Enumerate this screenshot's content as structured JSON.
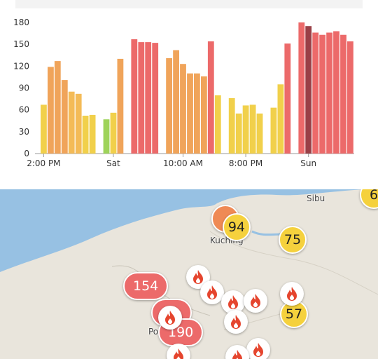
{
  "chart_data": {
    "type": "bar",
    "ylim": [
      0,
      180
    ],
    "yticks": [
      0,
      30,
      60,
      90,
      120,
      150,
      180
    ],
    "xtick_labels": [
      "2:00 PM",
      "Sat",
      "10:00 AM",
      "8:00 PM",
      "Sun"
    ],
    "xtick_bar_index": [
      0,
      10,
      20,
      29,
      38
    ],
    "values": [
      67,
      119,
      127,
      101,
      85,
      82,
      52,
      53,
      null,
      47,
      56,
      130,
      null,
      157,
      153,
      153,
      152,
      null,
      131,
      142,
      123,
      110,
      110,
      106,
      154,
      80,
      null,
      76,
      55,
      66,
      67,
      55,
      null,
      63,
      95,
      151,
      null,
      180,
      175,
      166,
      163,
      166,
      168,
      163,
      154
    ],
    "colors": [
      "#f1d04b",
      "#f0a45a",
      "#f0a45a",
      "#f0a45a",
      "#f4bb57",
      "#f4bb57",
      "#f1d04b",
      "#f1d04b",
      null,
      "#9ed35a",
      "#f1d04b",
      "#f0a45a",
      null,
      "#ec6a6a",
      "#ec6a6a",
      "#ec6a6a",
      "#ec6a6a",
      null,
      "#f0a45a",
      "#f0a45a",
      "#f0a45a",
      "#f0a45a",
      "#f0a45a",
      "#f0a45a",
      "#ec6a6a",
      "#f1d04b",
      null,
      "#f1d04b",
      "#f1d04b",
      "#f1d04b",
      "#f1d04b",
      "#f1d04b",
      null,
      "#f1d04b",
      "#f1d04b",
      "#ec6a6a",
      null,
      "#ec6a6a",
      "#9a4047",
      "#ec6a6a",
      "#ec6a6a",
      "#ec6a6a",
      "#ec6a6a",
      "#ec6a6a",
      "#ec6a6a"
    ]
  },
  "map": {
    "places": [
      "Sibu",
      "Kuching",
      "Pon"
    ],
    "markers": [
      {
        "value": "94",
        "style": "yellow"
      },
      {
        "value": "75",
        "style": "yellow"
      },
      {
        "value": "154",
        "style": "red"
      },
      {
        "value": "190",
        "style": "red"
      },
      {
        "value": "57",
        "style": "yellow"
      },
      {
        "value": "6",
        "style": "yellow"
      }
    ],
    "fire_icon": "fire-icon"
  }
}
